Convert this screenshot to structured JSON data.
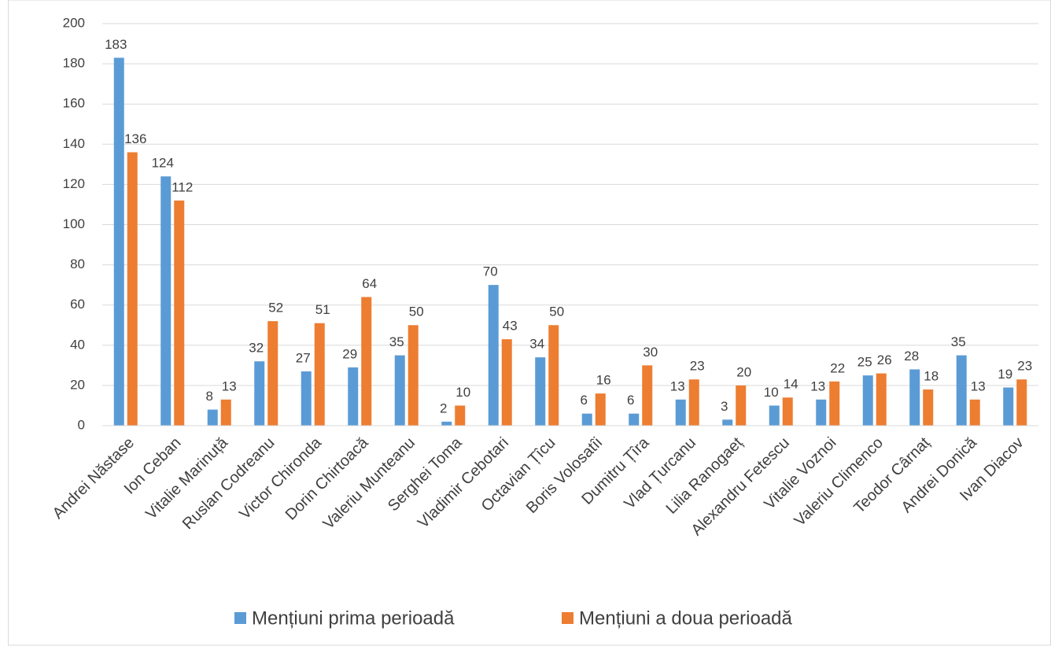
{
  "chart_data": {
    "type": "bar",
    "categories": [
      "Andrei Năstase",
      "Ion Ceban",
      "Vitalie Marinuță",
      "Ruslan Codreanu",
      "Victor Chironda",
      "Dorin Chirtoacă",
      "Valeriu Munteanu",
      "Serghei Toma",
      "Vladimir Cebotari",
      "Octavian Țîcu",
      "Boris Volosatîi",
      "Dumitru Țîra",
      "Vlad Țurcanu",
      "Lilia Ranogaeț",
      "Alexandru Fetescu",
      "Vitalie Voznoi",
      "Valeriu Climenco",
      "Teodor Cârnaț",
      "Andrei Donică",
      "Ivan Diacov"
    ],
    "series": [
      {
        "name": "Mențiuni prima perioadă",
        "color": "#5b9bd5",
        "values": [
          183,
          124,
          8,
          32,
          27,
          29,
          35,
          2,
          70,
          34,
          6,
          6,
          13,
          3,
          10,
          13,
          25,
          28,
          35,
          19
        ]
      },
      {
        "name": "Mențiuni a doua perioadă",
        "color": "#ed7d31",
        "values": [
          136,
          112,
          13,
          52,
          51,
          64,
          50,
          10,
          43,
          50,
          16,
          30,
          23,
          20,
          14,
          22,
          26,
          18,
          13,
          23
        ]
      }
    ],
    "ylim": [
      0,
      200
    ],
    "yticks": [
      0,
      20,
      40,
      60,
      80,
      100,
      120,
      140,
      160,
      180,
      200
    ],
    "grid": true,
    "legend": "bottom"
  }
}
